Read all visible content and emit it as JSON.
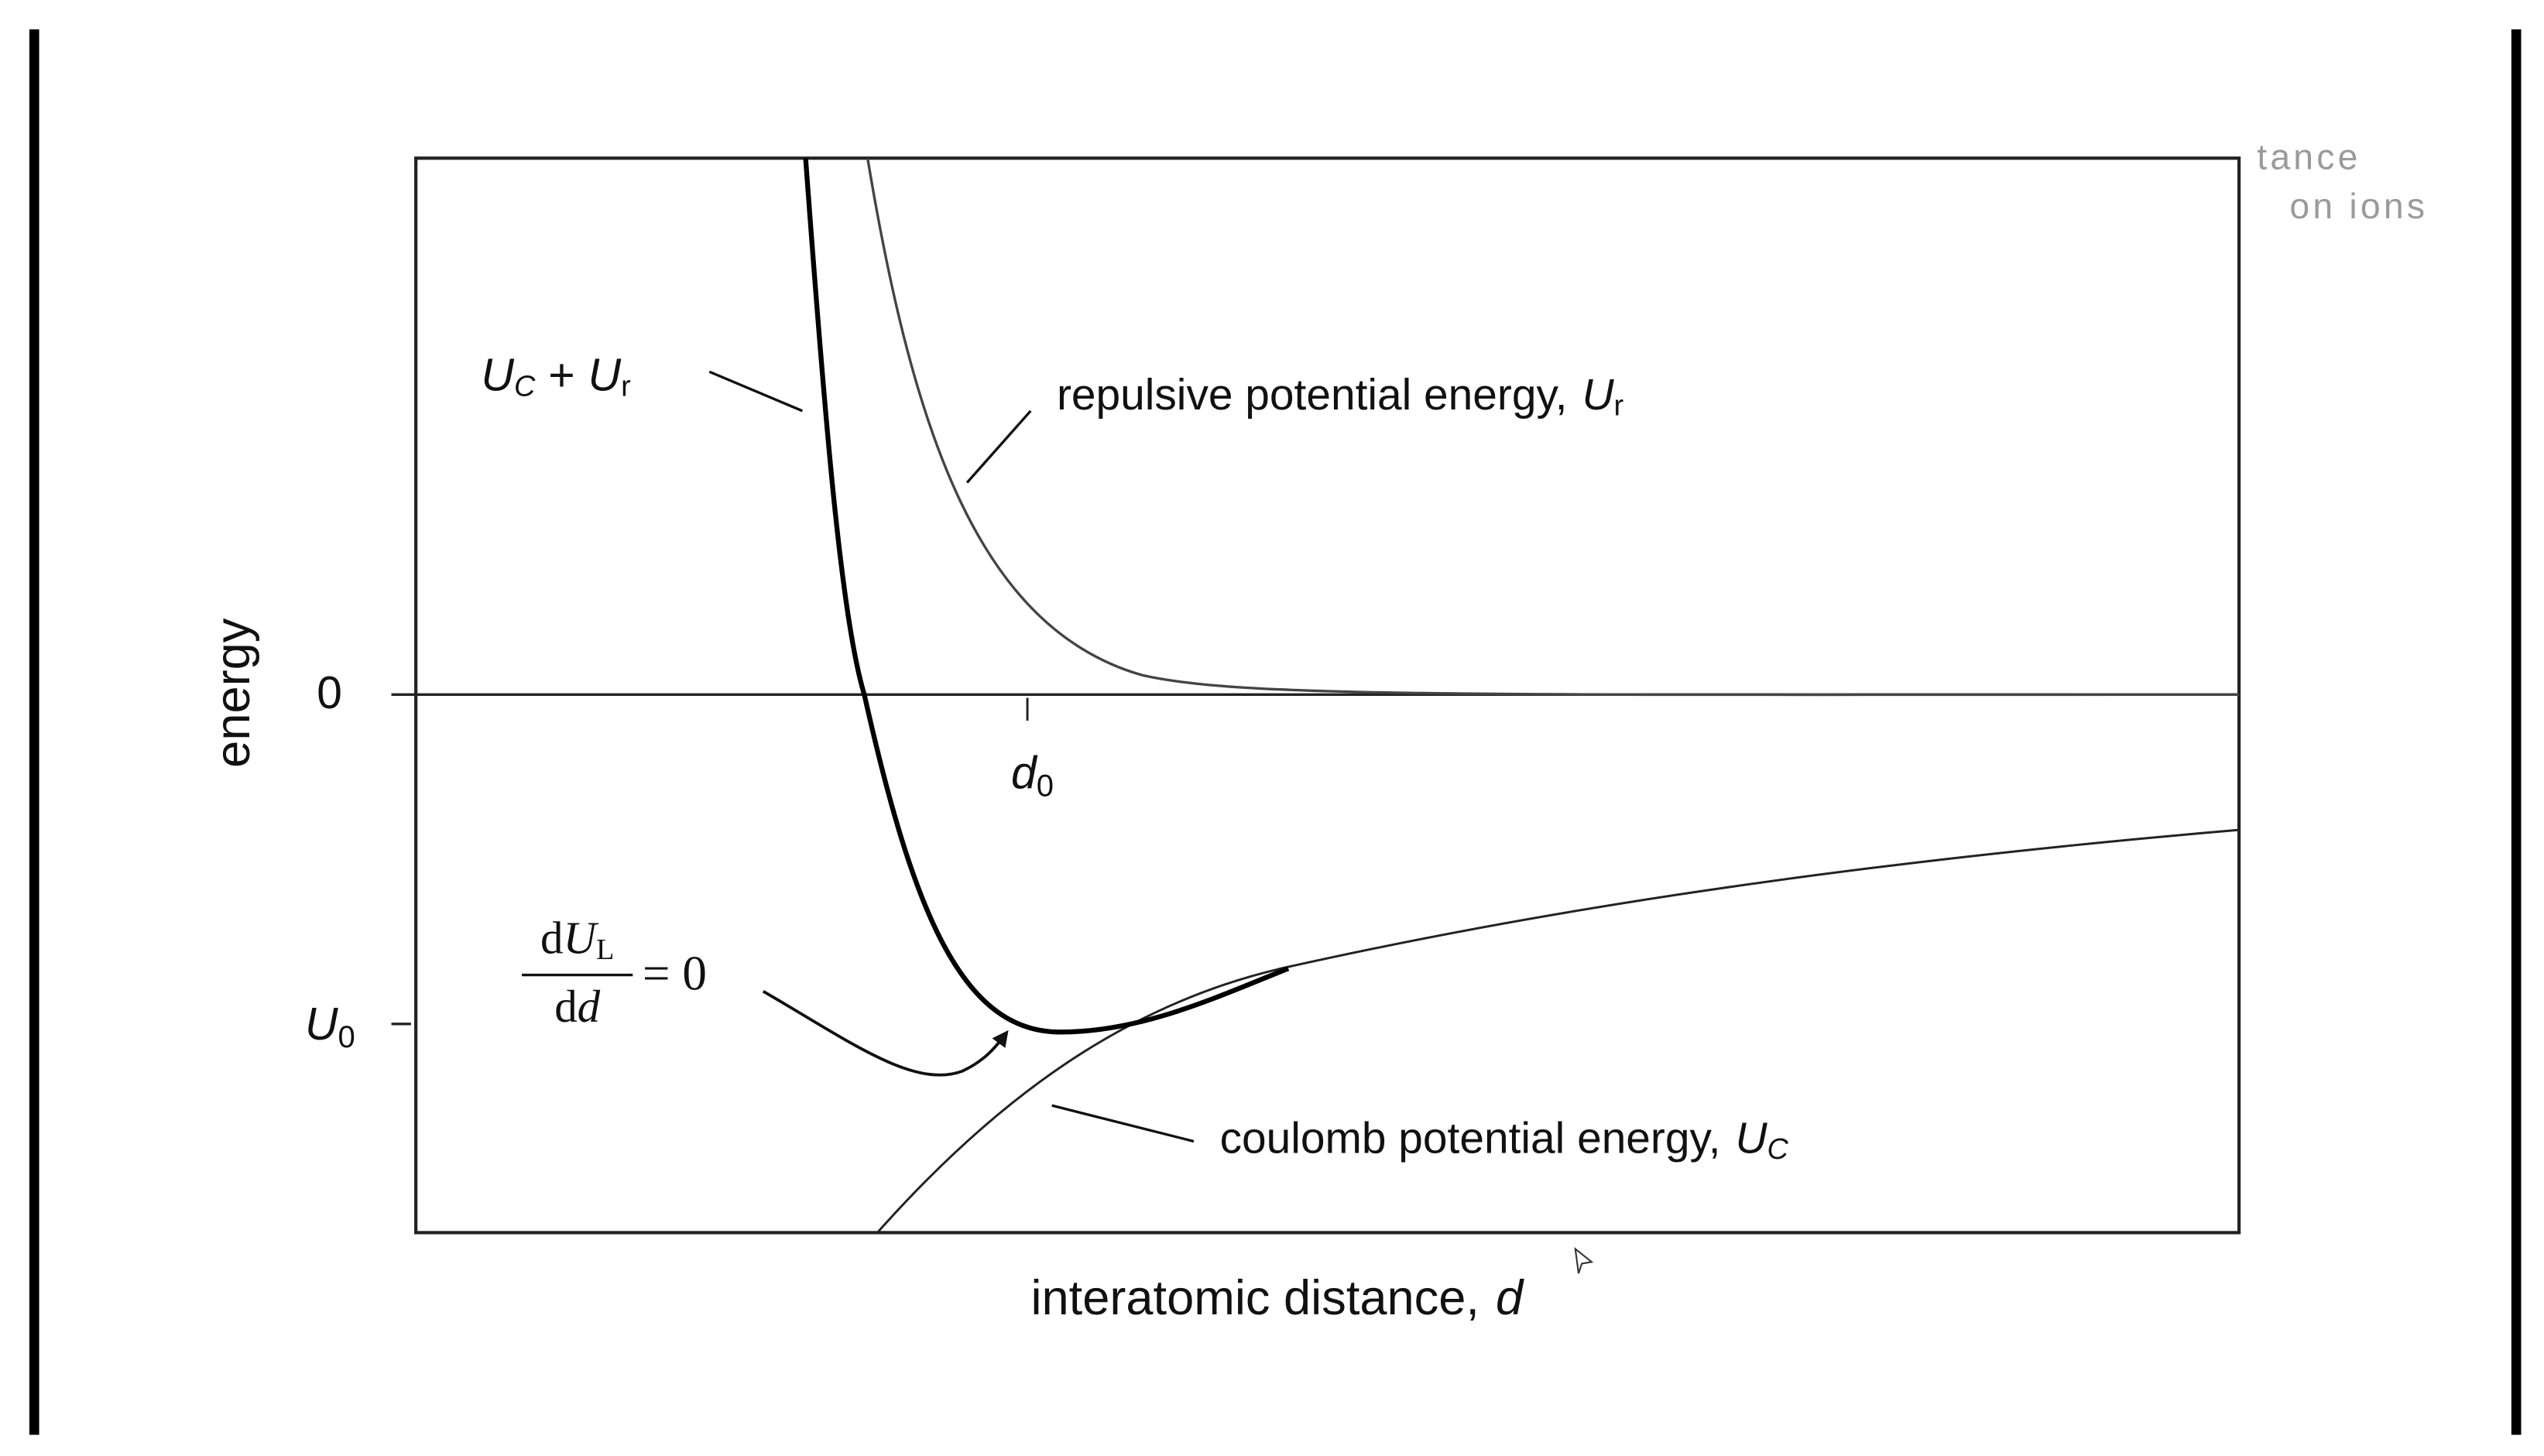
{
  "axes": {
    "y_label": "energy",
    "zero": "0",
    "u0": {
      "symbol": "U",
      "sub": "0"
    },
    "d0": {
      "symbol": "d",
      "sub": "0"
    },
    "x_label": {
      "text": "interatomic distance,",
      "symbol": "d"
    }
  },
  "annotations": {
    "sum": {
      "a": "U",
      "a_sub": "C",
      "op": "+",
      "b": "U",
      "b_sub": "r"
    },
    "repulsive": {
      "text": "repulsive potential energy,",
      "symbol": "U",
      "sub": "r"
    },
    "coulomb": {
      "text": "coulomb potential energy,",
      "symbol": "U",
      "sub": "C"
    },
    "derivative": {
      "num_d": "d",
      "num_symbol": "U",
      "num_sub": "L",
      "den_d": "d",
      "den_var": "d",
      "rhs": "= 0"
    }
  },
  "fragments": [
    "tance",
    "on ions"
  ]
}
